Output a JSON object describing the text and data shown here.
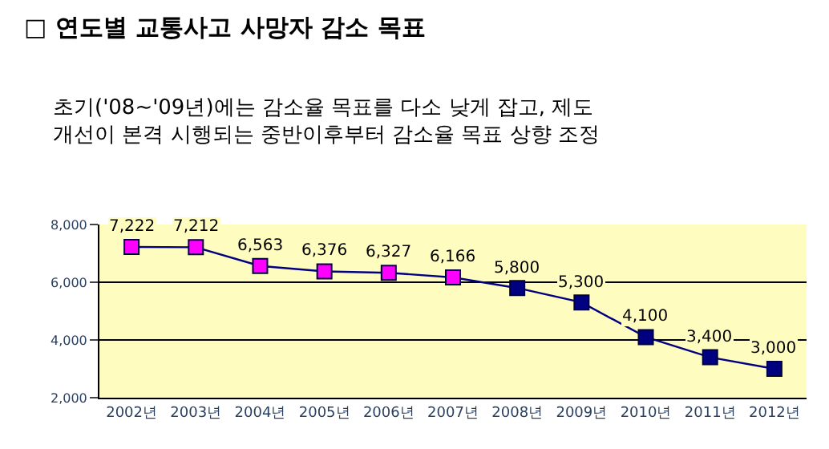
{
  "chart_data": {
    "type": "line",
    "title": "□ 연도별 교통사고 사망자 감소 목표",
    "subtitle": "초기('08~'09년)에는 감소율 목표를 다소 낮게 잡고, 제도 개선이 본격 시행되는 중반이후부터 감소율 목표 상향 조정",
    "categories": [
      "2002년",
      "2003년",
      "2004년",
      "2005년",
      "2006년",
      "2007년",
      "2008년",
      "2009년",
      "2010년",
      "2011년",
      "2012년"
    ],
    "series": [
      {
        "color": "#000080",
        "values": [
          7222,
          7212,
          6563,
          6376,
          6327,
          6166,
          5800,
          5300,
          4100,
          3400,
          3000
        ],
        "value_labels": [
          "7,222",
          "7,212",
          "6,563",
          "6,376",
          "6,327",
          "6,166",
          "5,800",
          "5,300",
          "4,100",
          "3,400",
          "3,000"
        ],
        "colors": [
          "#ff00ff",
          "#ff00ff",
          "#ff00ff",
          "#ff00ff",
          "#ff00ff",
          "#ff00ff",
          "#000080",
          "#000080",
          "#000080",
          "#000080",
          "#000080"
        ]
      }
    ],
    "ylim": [
      2000,
      8000
    ],
    "yticks": [
      {
        "value": 2000,
        "label": "2,000"
      },
      {
        "value": 4000,
        "label": "4,000"
      },
      {
        "value": 6000,
        "label": "6,000"
      },
      {
        "value": 8000,
        "label": "8,000"
      }
    ],
    "grid": "y",
    "marker": "square",
    "line_style": "solid"
  }
}
